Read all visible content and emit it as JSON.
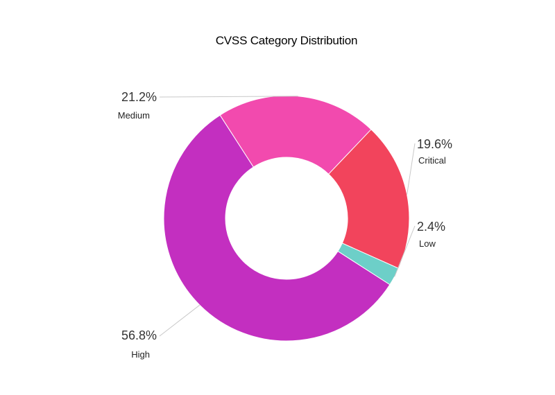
{
  "chart_data": {
    "type": "pie",
    "variant": "donut",
    "title": "CVSS Category Distribution",
    "legend": "none",
    "series": [
      {
        "slices": [
          {
            "name": "Critical",
            "value": 19.6,
            "label": "19.6%",
            "color": "#f2445c"
          },
          {
            "name": "Low",
            "value": 2.4,
            "label": "2.4%",
            "color": "#6dcfc8"
          },
          {
            "name": "High",
            "value": 56.8,
            "label": "56.8%",
            "color": "#c32fc0"
          },
          {
            "name": "Medium",
            "value": 21.2,
            "label": "21.2%",
            "color": "#f24aae"
          }
        ]
      }
    ]
  }
}
